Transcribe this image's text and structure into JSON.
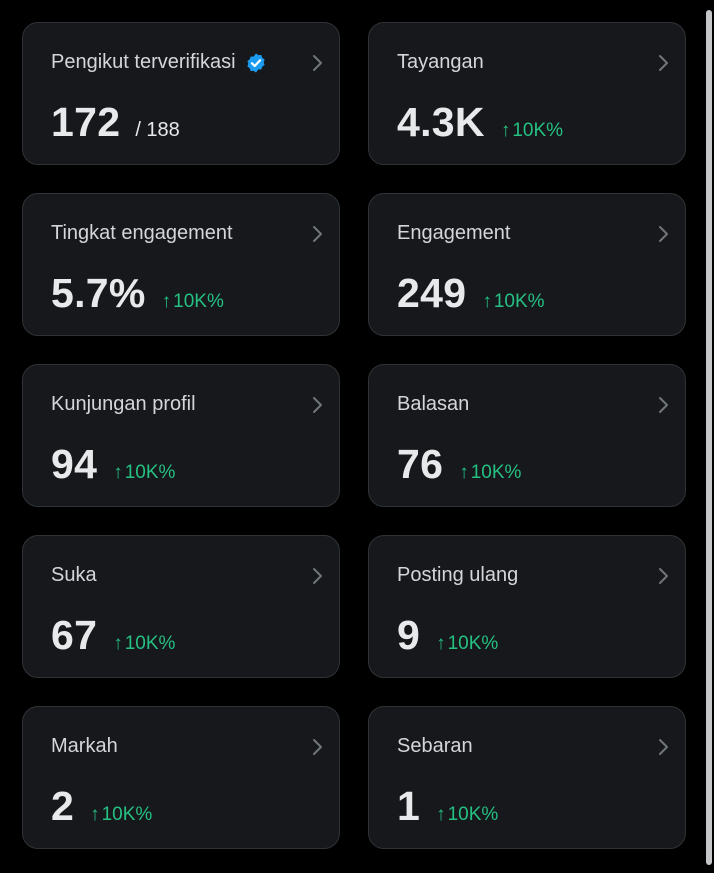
{
  "accent_colors": {
    "delta_positive": "#25c082",
    "verified_badge": "#1d9bf0"
  },
  "cards": [
    {
      "label": "Pengikut terverifikasi",
      "value": "172",
      "total": "/ 188",
      "delta": "",
      "verified_icon": "verified-badge-icon"
    },
    {
      "label": "Tayangan",
      "value": "4.3K",
      "delta": "10K%"
    },
    {
      "label": "Tingkat engagement",
      "value": "5.7%",
      "delta": "10K%"
    },
    {
      "label": "Engagement",
      "value": "249",
      "delta": "10K%"
    },
    {
      "label": "Kunjungan profil",
      "value": "94",
      "delta": "10K%"
    },
    {
      "label": "Balasan",
      "value": "76",
      "delta": "10K%"
    },
    {
      "label": "Suka",
      "value": "67",
      "delta": "10K%"
    },
    {
      "label": "Posting ulang",
      "value": "9",
      "delta": "10K%"
    },
    {
      "label": "Markah",
      "value": "2",
      "delta": "10K%"
    },
    {
      "label": "Sebaran",
      "value": "1",
      "delta": "10K%"
    }
  ],
  "delta_arrow": "↑",
  "chevron_icon": "chevron-right-icon"
}
